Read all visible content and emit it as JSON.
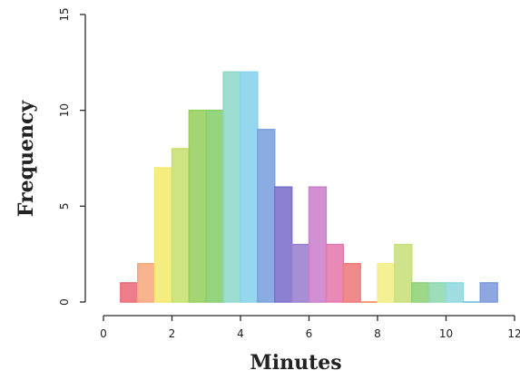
{
  "chart_data": {
    "type": "bar",
    "subtype": "histogram",
    "title": "",
    "xlabel": "Minutes",
    "ylabel": "Frequency",
    "xlim": [
      0,
      12
    ],
    "ylim": [
      0,
      15
    ],
    "x_ticks": [
      "0",
      "2",
      "4",
      "6",
      "8",
      "10",
      "12"
    ],
    "y_ticks": [
      "0",
      "5",
      "10",
      "15"
    ],
    "bin_width": 0.5,
    "grid": false,
    "bins": [
      {
        "start": 0.5,
        "end": 1.0,
        "value": 1,
        "color": "#ec6b7a"
      },
      {
        "start": 1.0,
        "end": 1.5,
        "value": 2,
        "color": "#f6a87d"
      },
      {
        "start": 1.5,
        "end": 2.0,
        "value": 7,
        "color": "#f4ea6e"
      },
      {
        "start": 2.0,
        "end": 2.5,
        "value": 8,
        "color": "#c7df6f"
      },
      {
        "start": 2.5,
        "end": 3.0,
        "value": 10,
        "color": "#97cf5e"
      },
      {
        "start": 3.0,
        "end": 3.5,
        "value": 10,
        "color": "#86cf6e"
      },
      {
        "start": 3.5,
        "end": 4.0,
        "value": 12,
        "color": "#8fd8c8"
      },
      {
        "start": 4.0,
        "end": 4.5,
        "value": 12,
        "color": "#86d3ec"
      },
      {
        "start": 4.5,
        "end": 5.0,
        "value": 9,
        "color": "#7ba1df"
      },
      {
        "start": 5.0,
        "end": 5.5,
        "value": 6,
        "color": "#7b6fc9"
      },
      {
        "start": 5.5,
        "end": 6.0,
        "value": 3,
        "color": "#9a7fcf"
      },
      {
        "start": 6.0,
        "end": 6.5,
        "value": 6,
        "color": "#cc7fcc"
      },
      {
        "start": 6.5,
        "end": 7.0,
        "value": 3,
        "color": "#e679ad"
      },
      {
        "start": 7.0,
        "end": 7.5,
        "value": 2,
        "color": "#ef7a7a"
      },
      {
        "start": 7.5,
        "end": 8.0,
        "value": 0,
        "color": "#f59a7a"
      },
      {
        "start": 8.0,
        "end": 8.5,
        "value": 2,
        "color": "#f3ee88"
      },
      {
        "start": 8.5,
        "end": 9.0,
        "value": 3,
        "color": "#c8e07a"
      },
      {
        "start": 9.0,
        "end": 9.5,
        "value": 1,
        "color": "#8fd277"
      },
      {
        "start": 9.5,
        "end": 10.0,
        "value": 1,
        "color": "#8fd8ad"
      },
      {
        "start": 10.0,
        "end": 10.5,
        "value": 1,
        "color": "#92d8df"
      },
      {
        "start": 10.5,
        "end": 11.0,
        "value": 0,
        "color": "#8fcbe9"
      },
      {
        "start": 11.0,
        "end": 11.5,
        "value": 1,
        "color": "#7e9bdc"
      }
    ]
  }
}
